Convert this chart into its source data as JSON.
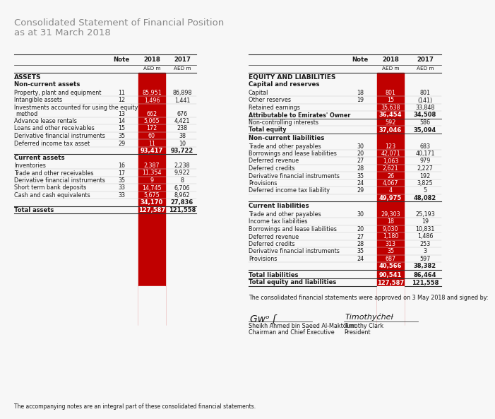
{
  "title_line1": "Consolidated Statement of Financial Position",
  "title_line2": "as at 31 March 2018",
  "bg_color": "#f7f7f7",
  "red_col_bg": "#c00000",
  "text_color": "#1a1a1a",
  "gray_text": "#888888",
  "light_gray_line": "#cccccc",
  "dark_line": "#555555",
  "left_table": {
    "sections": [
      {
        "section_title": "ASSETS",
        "subsections": [
          {
            "subsection_title": "Non-current assets",
            "rows": [
              {
                "label": "Property, plant and equipment",
                "note": "11",
                "v2018": "85,951",
                "v2017": "86,898",
                "bold": false
              },
              {
                "label": "Intangible assets",
                "note": "12",
                "v2018": "1,496",
                "v2017": "1,441",
                "bold": false
              },
              {
                "label": "Investments accounted for using the equity",
                "label2": "method",
                "note": "13",
                "v2018": "662",
                "v2017": "676",
                "bold": false,
                "multiline": true
              },
              {
                "label": "Advance lease rentals",
                "note": "14",
                "v2018": "5,065",
                "v2017": "4,421",
                "bold": false
              },
              {
                "label": "Loans and other receivables",
                "note": "15",
                "v2018": "172",
                "v2017": "238",
                "bold": false
              },
              {
                "label": "Derivative financial instruments",
                "note": "35",
                "v2018": "60",
                "v2017": "38",
                "bold": false
              },
              {
                "label": "Deferred income tax asset",
                "note": "29",
                "v2018": "11",
                "v2017": "10",
                "bold": false
              },
              {
                "label": "",
                "note": "",
                "v2018": "93,417",
                "v2017": "93,722",
                "bold": true,
                "subtotal": true
              }
            ]
          },
          {
            "subsection_title": "Current assets",
            "rows": [
              {
                "label": "Inventories",
                "note": "16",
                "v2018": "2,387",
                "v2017": "2,238",
                "bold": false
              },
              {
                "label": "Trade and other receivables",
                "note": "17",
                "v2018": "11,354",
                "v2017": "9,922",
                "bold": false
              },
              {
                "label": "Derivative financial instruments",
                "note": "35",
                "v2018": "9",
                "v2017": "8",
                "bold": false
              },
              {
                "label": "Short term bank deposits",
                "note": "33",
                "v2018": "14,745",
                "v2017": "6,706",
                "bold": false
              },
              {
                "label": "Cash and cash equivalents",
                "note": "33",
                "v2018": "5,675",
                "v2017": "8,962",
                "bold": false
              },
              {
                "label": "",
                "note": "",
                "v2018": "34,170",
                "v2017": "27,836",
                "bold": true,
                "subtotal": true
              }
            ]
          }
        ],
        "total_rows": [
          {
            "label": "Total assets",
            "note": "",
            "v2018": "127,587",
            "v2017": "121,558",
            "bold": true
          }
        ]
      }
    ]
  },
  "right_table": {
    "sections": [
      {
        "section_title": "EQUITY AND LIABILITIES",
        "subsections": [
          {
            "subsection_title": "Capital and reserves",
            "rows": [
              {
                "label": "Capital",
                "note": "18",
                "v2018": "801",
                "v2017": "801",
                "bold": false
              },
              {
                "label": "Other reserves",
                "note": "19",
                "v2018": "15",
                "v2017": "(141)",
                "bold": false
              },
              {
                "label": "Retained earnings",
                "note": "",
                "v2018": "35,638",
                "v2017": "33,848",
                "bold": false
              },
              {
                "label": "Attributable to Emirates' Owner",
                "note": "",
                "v2018": "36,454",
                "v2017": "34,508",
                "bold": true
              },
              {
                "label": "Non-controlling interests",
                "note": "",
                "v2018": "592",
                "v2017": "586",
                "bold": false
              },
              {
                "label": "Total equity",
                "note": "",
                "v2018": "37,046",
                "v2017": "35,094",
                "bold": true
              }
            ]
          },
          {
            "subsection_title": "Non-current liabilities",
            "rows": [
              {
                "label": "Trade and other payables",
                "note": "30",
                "v2018": "123",
                "v2017": "683",
                "bold": false
              },
              {
                "label": "Borrowings and lease liabilities",
                "note": "20",
                "v2018": "42,071",
                "v2017": "40,171",
                "bold": false
              },
              {
                "label": "Deferred revenue",
                "note": "27",
                "v2018": "1,063",
                "v2017": "979",
                "bold": false
              },
              {
                "label": "Deferred credits",
                "note": "28",
                "v2018": "2,621",
                "v2017": "2,227",
                "bold": false
              },
              {
                "label": "Derivative financial instruments",
                "note": "35",
                "v2018": "26",
                "v2017": "192",
                "bold": false
              },
              {
                "label": "Provisions",
                "note": "24",
                "v2018": "4,067",
                "v2017": "3,825",
                "bold": false
              },
              {
                "label": "Deferred income tax liability",
                "note": "29",
                "v2018": "4",
                "v2017": "5",
                "bold": false
              },
              {
                "label": "",
                "note": "",
                "v2018": "49,975",
                "v2017": "48,082",
                "bold": true,
                "subtotal": true
              }
            ]
          },
          {
            "subsection_title": "Current liabilities",
            "rows": [
              {
                "label": "Trade and other payables",
                "note": "30",
                "v2018": "29,303",
                "v2017": "25,193",
                "bold": false
              },
              {
                "label": "Income tax liabilities",
                "note": "",
                "v2018": "18",
                "v2017": "19",
                "bold": false
              },
              {
                "label": "Borrowings and lease liabilities",
                "note": "20",
                "v2018": "9,030",
                "v2017": "10,831",
                "bold": false
              },
              {
                "label": "Deferred revenue",
                "note": "27",
                "v2018": "1,180",
                "v2017": "1,486",
                "bold": false
              },
              {
                "label": "Deferred credits",
                "note": "28",
                "v2018": "313",
                "v2017": "253",
                "bold": false
              },
              {
                "label": "Derivative financial instruments",
                "note": "35",
                "v2018": "35",
                "v2017": "3",
                "bold": false
              },
              {
                "label": "Provisions",
                "note": "24",
                "v2018": "687",
                "v2017": "597",
                "bold": false
              },
              {
                "label": "",
                "note": "",
                "v2018": "40,566",
                "v2017": "38,382",
                "bold": true,
                "subtotal": true
              }
            ]
          }
        ],
        "total_rows": [
          {
            "label": "Total liabilities",
            "note": "",
            "v2018": "90,541",
            "v2017": "86,464",
            "bold": true
          },
          {
            "label": "Total equity and liabilities",
            "note": "",
            "v2018": "127,587",
            "v2017": "121,558",
            "bold": true
          }
        ]
      }
    ]
  },
  "footer_text": "The consolidated financial statements were approved on 3 May 2018 and signed by:",
  "signer1_name": "Sheikh Ahmed bin Saeed Al-Maktoum",
  "signer1_title": "Chairman and Chief Executive",
  "signer2_name": "Timothy Clark",
  "signer2_title": "President",
  "footnote": "The accompanying notes are an integral part of these consolidated financial statements."
}
